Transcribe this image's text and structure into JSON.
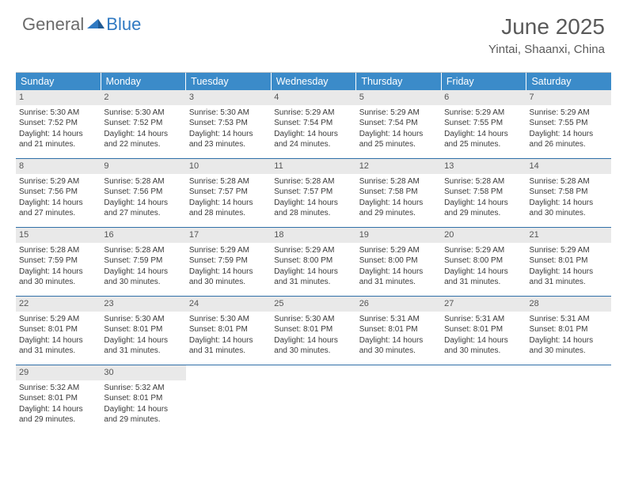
{
  "logo": {
    "general": "General",
    "blue": "Blue"
  },
  "title": "June 2025",
  "location": "Yintai, Shaanxi, China",
  "colors": {
    "header_bg": "#3b8bc9",
    "header_text": "#ffffff",
    "daynum_bg": "#e9e9e9",
    "week_border": "#2f6fa8",
    "logo_blue": "#2f79c2",
    "logo_gray": "#6b6b6b",
    "body_text": "#3a3a3a"
  },
  "dow": [
    "Sunday",
    "Monday",
    "Tuesday",
    "Wednesday",
    "Thursday",
    "Friday",
    "Saturday"
  ],
  "weeks": [
    [
      {
        "n": "1",
        "sr": "Sunrise: 5:30 AM",
        "ss": "Sunset: 7:52 PM",
        "d1": "Daylight: 14 hours",
        "d2": "and 21 minutes."
      },
      {
        "n": "2",
        "sr": "Sunrise: 5:30 AM",
        "ss": "Sunset: 7:52 PM",
        "d1": "Daylight: 14 hours",
        "d2": "and 22 minutes."
      },
      {
        "n": "3",
        "sr": "Sunrise: 5:30 AM",
        "ss": "Sunset: 7:53 PM",
        "d1": "Daylight: 14 hours",
        "d2": "and 23 minutes."
      },
      {
        "n": "4",
        "sr": "Sunrise: 5:29 AM",
        "ss": "Sunset: 7:54 PM",
        "d1": "Daylight: 14 hours",
        "d2": "and 24 minutes."
      },
      {
        "n": "5",
        "sr": "Sunrise: 5:29 AM",
        "ss": "Sunset: 7:54 PM",
        "d1": "Daylight: 14 hours",
        "d2": "and 25 minutes."
      },
      {
        "n": "6",
        "sr": "Sunrise: 5:29 AM",
        "ss": "Sunset: 7:55 PM",
        "d1": "Daylight: 14 hours",
        "d2": "and 25 minutes."
      },
      {
        "n": "7",
        "sr": "Sunrise: 5:29 AM",
        "ss": "Sunset: 7:55 PM",
        "d1": "Daylight: 14 hours",
        "d2": "and 26 minutes."
      }
    ],
    [
      {
        "n": "8",
        "sr": "Sunrise: 5:29 AM",
        "ss": "Sunset: 7:56 PM",
        "d1": "Daylight: 14 hours",
        "d2": "and 27 minutes."
      },
      {
        "n": "9",
        "sr": "Sunrise: 5:28 AM",
        "ss": "Sunset: 7:56 PM",
        "d1": "Daylight: 14 hours",
        "d2": "and 27 minutes."
      },
      {
        "n": "10",
        "sr": "Sunrise: 5:28 AM",
        "ss": "Sunset: 7:57 PM",
        "d1": "Daylight: 14 hours",
        "d2": "and 28 minutes."
      },
      {
        "n": "11",
        "sr": "Sunrise: 5:28 AM",
        "ss": "Sunset: 7:57 PM",
        "d1": "Daylight: 14 hours",
        "d2": "and 28 minutes."
      },
      {
        "n": "12",
        "sr": "Sunrise: 5:28 AM",
        "ss": "Sunset: 7:58 PM",
        "d1": "Daylight: 14 hours",
        "d2": "and 29 minutes."
      },
      {
        "n": "13",
        "sr": "Sunrise: 5:28 AM",
        "ss": "Sunset: 7:58 PM",
        "d1": "Daylight: 14 hours",
        "d2": "and 29 minutes."
      },
      {
        "n": "14",
        "sr": "Sunrise: 5:28 AM",
        "ss": "Sunset: 7:58 PM",
        "d1": "Daylight: 14 hours",
        "d2": "and 30 minutes."
      }
    ],
    [
      {
        "n": "15",
        "sr": "Sunrise: 5:28 AM",
        "ss": "Sunset: 7:59 PM",
        "d1": "Daylight: 14 hours",
        "d2": "and 30 minutes."
      },
      {
        "n": "16",
        "sr": "Sunrise: 5:28 AM",
        "ss": "Sunset: 7:59 PM",
        "d1": "Daylight: 14 hours",
        "d2": "and 30 minutes."
      },
      {
        "n": "17",
        "sr": "Sunrise: 5:29 AM",
        "ss": "Sunset: 7:59 PM",
        "d1": "Daylight: 14 hours",
        "d2": "and 30 minutes."
      },
      {
        "n": "18",
        "sr": "Sunrise: 5:29 AM",
        "ss": "Sunset: 8:00 PM",
        "d1": "Daylight: 14 hours",
        "d2": "and 31 minutes."
      },
      {
        "n": "19",
        "sr": "Sunrise: 5:29 AM",
        "ss": "Sunset: 8:00 PM",
        "d1": "Daylight: 14 hours",
        "d2": "and 31 minutes."
      },
      {
        "n": "20",
        "sr": "Sunrise: 5:29 AM",
        "ss": "Sunset: 8:00 PM",
        "d1": "Daylight: 14 hours",
        "d2": "and 31 minutes."
      },
      {
        "n": "21",
        "sr": "Sunrise: 5:29 AM",
        "ss": "Sunset: 8:01 PM",
        "d1": "Daylight: 14 hours",
        "d2": "and 31 minutes."
      }
    ],
    [
      {
        "n": "22",
        "sr": "Sunrise: 5:29 AM",
        "ss": "Sunset: 8:01 PM",
        "d1": "Daylight: 14 hours",
        "d2": "and 31 minutes."
      },
      {
        "n": "23",
        "sr": "Sunrise: 5:30 AM",
        "ss": "Sunset: 8:01 PM",
        "d1": "Daylight: 14 hours",
        "d2": "and 31 minutes."
      },
      {
        "n": "24",
        "sr": "Sunrise: 5:30 AM",
        "ss": "Sunset: 8:01 PM",
        "d1": "Daylight: 14 hours",
        "d2": "and 31 minutes."
      },
      {
        "n": "25",
        "sr": "Sunrise: 5:30 AM",
        "ss": "Sunset: 8:01 PM",
        "d1": "Daylight: 14 hours",
        "d2": "and 30 minutes."
      },
      {
        "n": "26",
        "sr": "Sunrise: 5:31 AM",
        "ss": "Sunset: 8:01 PM",
        "d1": "Daylight: 14 hours",
        "d2": "and 30 minutes."
      },
      {
        "n": "27",
        "sr": "Sunrise: 5:31 AM",
        "ss": "Sunset: 8:01 PM",
        "d1": "Daylight: 14 hours",
        "d2": "and 30 minutes."
      },
      {
        "n": "28",
        "sr": "Sunrise: 5:31 AM",
        "ss": "Sunset: 8:01 PM",
        "d1": "Daylight: 14 hours",
        "d2": "and 30 minutes."
      }
    ],
    [
      {
        "n": "29",
        "sr": "Sunrise: 5:32 AM",
        "ss": "Sunset: 8:01 PM",
        "d1": "Daylight: 14 hours",
        "d2": "and 29 minutes."
      },
      {
        "n": "30",
        "sr": "Sunrise: 5:32 AM",
        "ss": "Sunset: 8:01 PM",
        "d1": "Daylight: 14 hours",
        "d2": "and 29 minutes."
      },
      {
        "empty": true
      },
      {
        "empty": true
      },
      {
        "empty": true
      },
      {
        "empty": true
      },
      {
        "empty": true
      }
    ]
  ]
}
